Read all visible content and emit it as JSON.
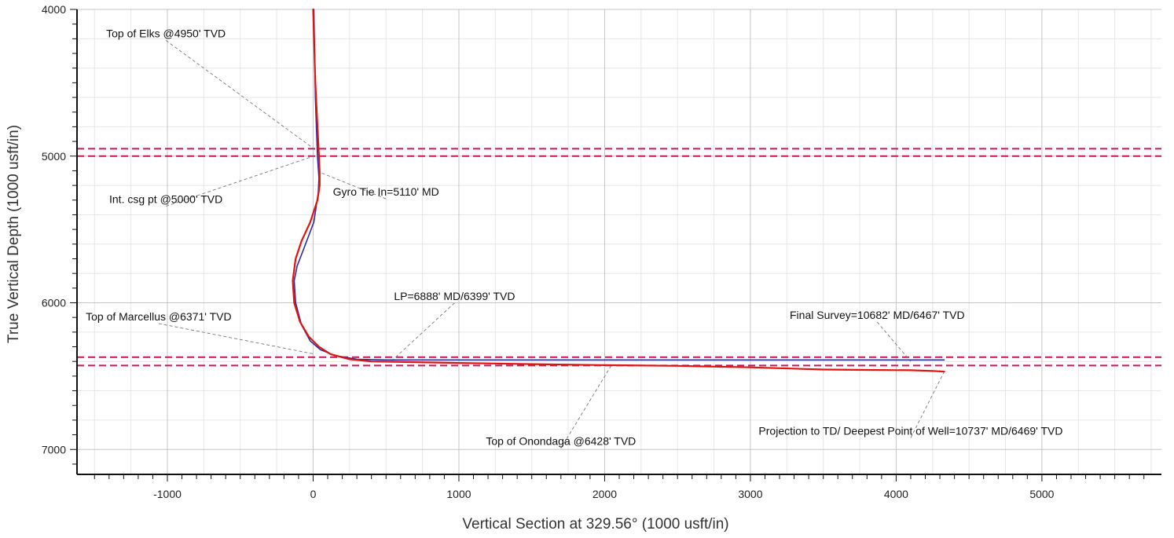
{
  "chart_data": {
    "type": "line",
    "xlabel": "Vertical Section at 329.56° (1000 usft/in)",
    "ylabel": "True Vertical Depth (1000 usft/in)",
    "xlim": [
      -1620,
      5820
    ],
    "ylim": [
      4000,
      7170
    ],
    "y_inverted": true,
    "x_ticks": [
      -1000,
      0,
      1000,
      2000,
      3000,
      4000,
      5000
    ],
    "x_tick_labels": [
      "-1000",
      "0",
      "1000",
      "2000",
      "3000",
      "4000",
      "5000"
    ],
    "y_ticks": [
      4000,
      5000,
      6000,
      7000
    ],
    "y_tick_labels": [
      "4000",
      "5000",
      "6000",
      "7000"
    ],
    "grid": true,
    "colors": {
      "actual": "#e0140f",
      "plan": "#2b2ba8",
      "formation": "#c2185b"
    },
    "series": [
      {
        "key": "plan",
        "color": "#2b2ba8",
        "points": [
          [
            5,
            4000
          ],
          [
            15,
            4600
          ],
          [
            30,
            5000
          ],
          [
            40,
            5150
          ],
          [
            35,
            5250
          ],
          [
            5,
            5450
          ],
          [
            -60,
            5620
          ],
          [
            -110,
            5750
          ],
          [
            -130,
            5850
          ],
          [
            -120,
            6000
          ],
          [
            -80,
            6150
          ],
          [
            -20,
            6260
          ],
          [
            50,
            6320
          ],
          [
            150,
            6360
          ],
          [
            300,
            6385
          ],
          [
            500,
            6390
          ],
          [
            1000,
            6390
          ],
          [
            2000,
            6390
          ],
          [
            3000,
            6390
          ],
          [
            4000,
            6390
          ],
          [
            4330,
            6390
          ]
        ]
      },
      {
        "key": "actual",
        "color": "#e0140f",
        "points": [
          [
            0,
            4000
          ],
          [
            15,
            4500
          ],
          [
            30,
            4800
          ],
          [
            40,
            5000
          ],
          [
            45,
            5110
          ],
          [
            45,
            5200
          ],
          [
            30,
            5300
          ],
          [
            -20,
            5450
          ],
          [
            -80,
            5580
          ],
          [
            -120,
            5700
          ],
          [
            -140,
            5850
          ],
          [
            -130,
            6000
          ],
          [
            -90,
            6130
          ],
          [
            -30,
            6230
          ],
          [
            40,
            6300
          ],
          [
            120,
            6350
          ],
          [
            250,
            6385
          ],
          [
            400,
            6400
          ],
          [
            700,
            6405
          ],
          [
            1000,
            6410
          ],
          [
            1500,
            6418
          ],
          [
            2000,
            6425
          ],
          [
            2500,
            6430
          ],
          [
            3000,
            6440
          ],
          [
            3500,
            6455
          ],
          [
            3800,
            6458
          ],
          [
            4100,
            6460
          ],
          [
            4250,
            6465
          ],
          [
            4330,
            6469
          ]
        ]
      }
    ],
    "formation_lines": [
      4950,
      5000,
      6371,
      6428
    ],
    "annotations": [
      {
        "text": "Top of Elks @4950' TVD",
        "point": [
          5,
          4950
        ],
        "label": [
          -1010,
          4190
        ]
      },
      {
        "text": "Int. csg pt @5000' TVD",
        "point": [
          5,
          5000
        ],
        "label": [
          -1010,
          5320
        ]
      },
      {
        "text": "Gyro Tie In=5110' MD",
        "point": [
          45,
          5110
        ],
        "label": [
          500,
          5270
        ]
      },
      {
        "text": "LP=6888' MD/6399' TVD",
        "point": [
          540,
          6395
        ],
        "label": [
          970,
          5980
        ]
      },
      {
        "text": "Top of Marcellus @6371' TVD",
        "point": [
          10,
          6350
        ],
        "label": [
          -1060,
          6120
        ]
      },
      {
        "text": "Final Survey=10682' MD/6467' TVD",
        "point": [
          4100,
          6400
        ],
        "label": [
          3870,
          6110
        ]
      },
      {
        "text": "Top of Onondaga @6428' TVD",
        "point": [
          2050,
          6420
        ],
        "label": [
          1700,
          6970
        ]
      },
      {
        "text": "Projection to TD/ Deepest Point of Well=10737' MD/6469' TVD",
        "point": [
          4330,
          6469
        ],
        "label": [
          4100,
          6900
        ]
      }
    ]
  }
}
